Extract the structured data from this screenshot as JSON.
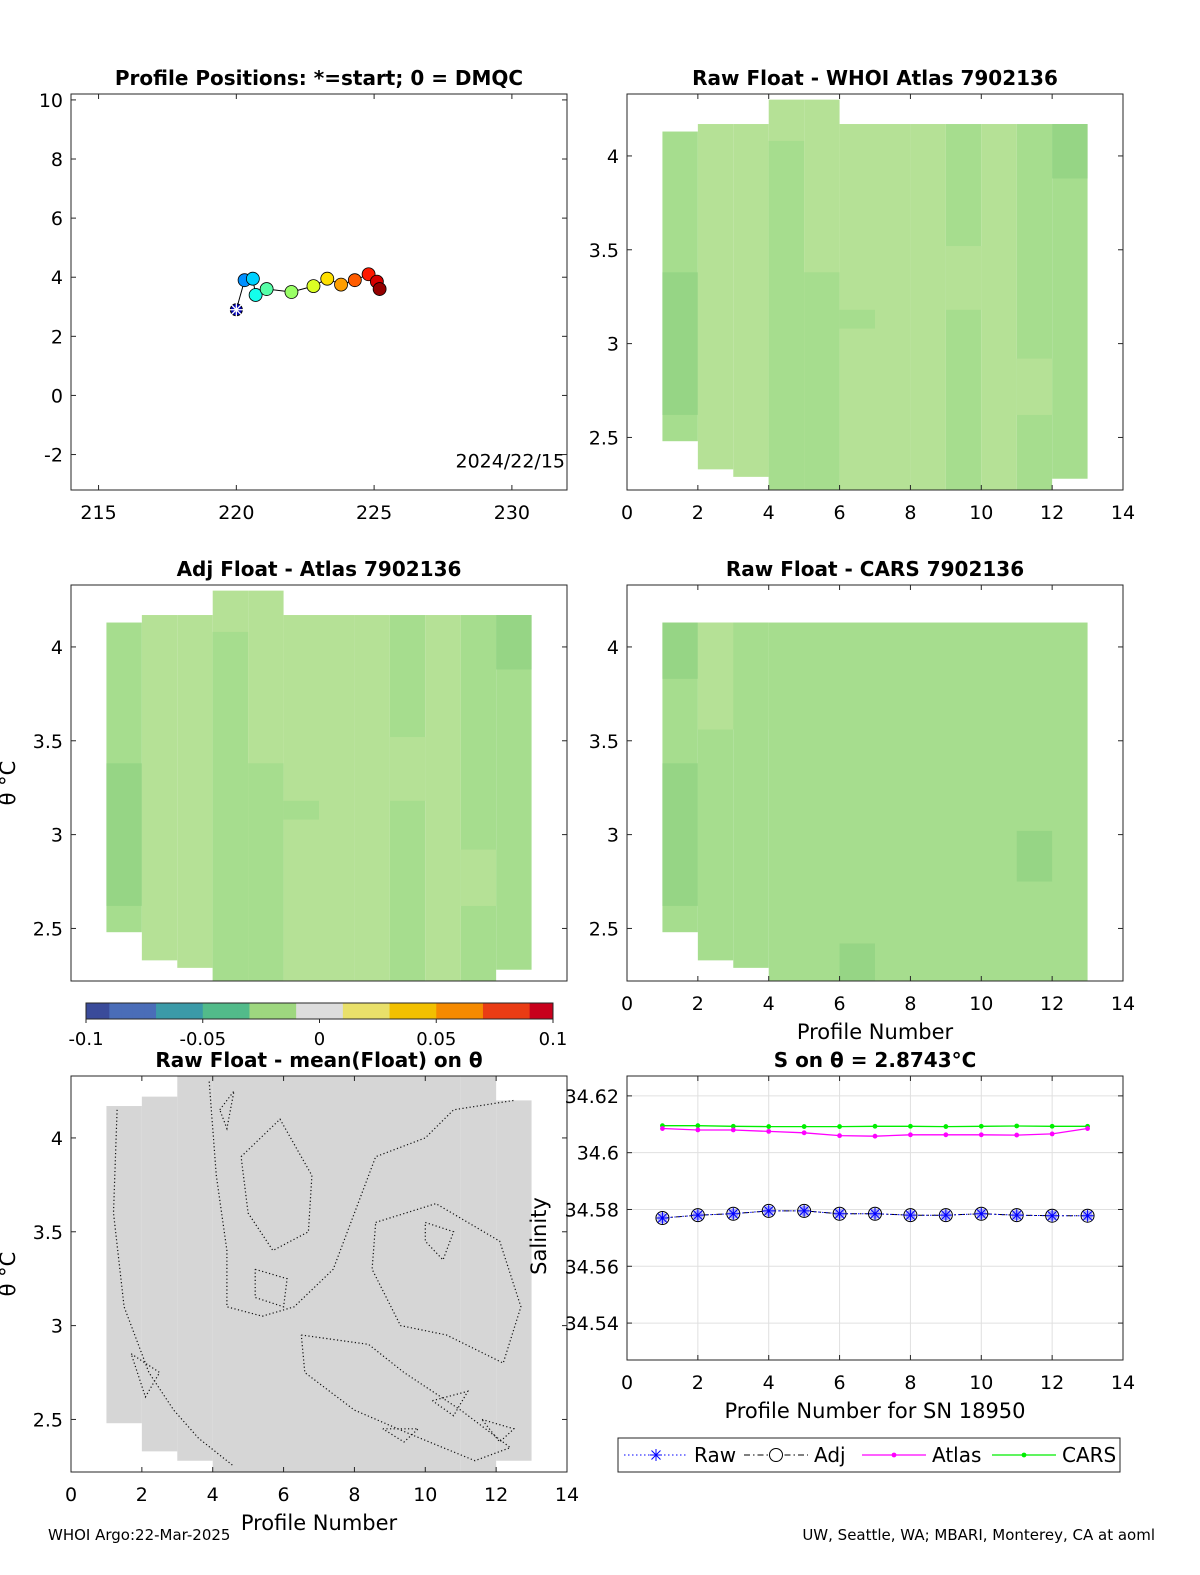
{
  "footer": {
    "left": "WHOI Argo:22-Mar-2025",
    "right": "UW, Seattle, WA; MBARI, Monterey, CA at aoml"
  },
  "colors": {
    "raw": "#0000ff",
    "adj": "#000000",
    "atlas": "#ff00ff",
    "cars": "#00ee00",
    "pane_fill_light": "#b5e196",
    "pane_fill_mid": "#a6dd8e",
    "pane_fill_dark": "#96d585",
    "gray_fill": "#d6d6d6"
  },
  "chart_data": [
    {
      "id": "positions",
      "type": "scatter",
      "title": "Profile Positions: *=start; 0 = DMQC",
      "xlim": [
        214,
        232
      ],
      "ylim": [
        -3.2,
        10.2
      ],
      "xticks": [
        "215",
        "220",
        "225",
        "230"
      ],
      "yticks": [
        "-2",
        "0",
        "2",
        "4",
        "6",
        "8",
        "10"
      ],
      "annotation": "2024/22/15",
      "start_marker": "*",
      "points": [
        {
          "x": 220.0,
          "y": 2.9
        },
        {
          "x": 220.3,
          "y": 3.9
        },
        {
          "x": 220.6,
          "y": 3.95
        },
        {
          "x": 220.7,
          "y": 3.4
        },
        {
          "x": 221.1,
          "y": 3.6
        },
        {
          "x": 222.0,
          "y": 3.5
        },
        {
          "x": 222.8,
          "y": 3.7
        },
        {
          "x": 223.3,
          "y": 3.95
        },
        {
          "x": 223.8,
          "y": 3.75
        },
        {
          "x": 224.3,
          "y": 3.9
        },
        {
          "x": 224.8,
          "y": 4.1
        },
        {
          "x": 225.1,
          "y": 3.85
        },
        {
          "x": 225.2,
          "y": 3.6
        }
      ]
    },
    {
      "id": "raw_whoi",
      "type": "heatmap",
      "title": "Raw Float - WHOI Atlas  7902136",
      "xlim": [
        0,
        14
      ],
      "ylim": [
        2.22,
        4.33
      ],
      "xticks": [
        "0",
        "2",
        "4",
        "6",
        "8",
        "10",
        "12",
        "14"
      ],
      "yticks": [
        "2.5",
        "3",
        "3.5",
        "4"
      ],
      "cells": [
        [
          1,
          2.48,
          2,
          4.13,
          "mid"
        ],
        [
          1,
          2.62,
          2,
          3.38,
          "dark"
        ],
        [
          2,
          2.33,
          3,
          4.17,
          "light"
        ],
        [
          3,
          2.29,
          4,
          4.17,
          "light"
        ],
        [
          4,
          2.22,
          5,
          4.3,
          "light"
        ],
        [
          4,
          2.22,
          5,
          4.08,
          "mid"
        ],
        [
          5,
          2.22,
          6,
          4.3,
          "light"
        ],
        [
          5,
          2.22,
          6,
          3.38,
          "mid"
        ],
        [
          6,
          2.22,
          7,
          4.17,
          "light"
        ],
        [
          6,
          3.08,
          7,
          3.18,
          "mid"
        ],
        [
          7,
          2.22,
          8,
          4.17,
          "light"
        ],
        [
          8,
          2.22,
          9,
          4.17,
          "light"
        ],
        [
          9,
          2.22,
          10,
          4.17,
          "mid"
        ],
        [
          9,
          3.18,
          10,
          3.52,
          "light"
        ],
        [
          10,
          2.22,
          11,
          4.17,
          "light"
        ],
        [
          11,
          2.22,
          12,
          4.17,
          "mid"
        ],
        [
          11,
          2.62,
          12,
          2.92,
          "light"
        ],
        [
          12,
          2.28,
          13,
          4.17,
          "mid"
        ],
        [
          12,
          3.88,
          13,
          4.17,
          "dark"
        ]
      ]
    },
    {
      "id": "adj_atlas",
      "type": "heatmap",
      "title": "Adj Float - Atlas  7902136",
      "ylabel": "θ °C",
      "xlim": [
        -1,
        13
      ],
      "ylim": [
        2.22,
        4.33
      ],
      "yticks": [
        "2.5",
        "3",
        "3.5",
        "4"
      ],
      "cells": [
        [
          0,
          2.48,
          1,
          4.13,
          "mid"
        ],
        [
          0,
          2.62,
          1,
          3.38,
          "dark"
        ],
        [
          1,
          2.33,
          2,
          4.17,
          "light"
        ],
        [
          2,
          2.29,
          3,
          4.17,
          "light"
        ],
        [
          3,
          2.22,
          4,
          4.3,
          "light"
        ],
        [
          3,
          2.22,
          4,
          4.08,
          "mid"
        ],
        [
          4,
          2.22,
          5,
          4.3,
          "light"
        ],
        [
          4,
          2.22,
          5,
          3.38,
          "mid"
        ],
        [
          5,
          2.22,
          6,
          4.17,
          "light"
        ],
        [
          5,
          3.08,
          6,
          3.18,
          "mid"
        ],
        [
          6,
          2.22,
          7,
          4.17,
          "light"
        ],
        [
          7,
          2.22,
          8,
          4.17,
          "light"
        ],
        [
          8,
          2.22,
          9,
          4.17,
          "mid"
        ],
        [
          8,
          3.18,
          9,
          3.52,
          "light"
        ],
        [
          9,
          2.22,
          10,
          4.17,
          "light"
        ],
        [
          10,
          2.22,
          11,
          4.17,
          "mid"
        ],
        [
          10,
          2.62,
          11,
          2.92,
          "light"
        ],
        [
          11,
          2.28,
          12,
          4.17,
          "mid"
        ],
        [
          11,
          3.88,
          12,
          4.17,
          "dark"
        ]
      ]
    },
    {
      "id": "raw_cars",
      "type": "heatmap",
      "title": "Raw Float - CARS  7902136",
      "xlabel": "Profile Number",
      "xlim": [
        0,
        14
      ],
      "ylim": [
        2.22,
        4.33
      ],
      "xticks": [
        "0",
        "2",
        "4",
        "6",
        "8",
        "10",
        "12",
        "14"
      ],
      "yticks": [
        "2.5",
        "3",
        "3.5",
        "4"
      ],
      "cells": [
        [
          1,
          2.48,
          2,
          4.13,
          "mid"
        ],
        [
          1,
          2.62,
          2,
          3.38,
          "dark"
        ],
        [
          1,
          3.83,
          2,
          4.13,
          "dark"
        ],
        [
          2,
          2.33,
          3,
          4.13,
          "mid"
        ],
        [
          2,
          3.56,
          4,
          4.13,
          "light"
        ],
        [
          3,
          2.29,
          4,
          4.13,
          "mid"
        ],
        [
          4,
          2.22,
          13,
          4.13,
          "mid"
        ],
        [
          6,
          2.22,
          7,
          2.42,
          "dark"
        ],
        [
          11,
          2.75,
          12,
          3.02,
          "dark"
        ]
      ]
    },
    {
      "id": "colorbar",
      "type": "heatmap",
      "ticks": [
        "-0.1",
        "-0.05",
        "0",
        "0.05",
        "0.1"
      ],
      "range": [
        -0.1,
        0.1
      ]
    },
    {
      "id": "raw_mean",
      "type": "heatmap",
      "title": "Raw Float - mean(Float) on θ",
      "xlabel": "Profile Number",
      "ylabel": "θ °C",
      "xlim": [
        0,
        14
      ],
      "ylim": [
        2.22,
        4.33
      ],
      "xticks": [
        "0",
        "2",
        "4",
        "6",
        "8",
        "10",
        "12",
        "14"
      ],
      "yticks": [
        "2.5",
        "3",
        "3.5",
        "4"
      ]
    },
    {
      "id": "salinity",
      "type": "line",
      "title": "S on θ = 2.8743°C",
      "xlabel": "Profile Number for SN 18950",
      "ylabel": "Salinity",
      "xlim": [
        0,
        14
      ],
      "ylim": [
        34.527,
        34.627
      ],
      "xticks": [
        "0",
        "2",
        "4",
        "6",
        "8",
        "10",
        "12",
        "14"
      ],
      "yticks": [
        "34.54",
        "34.56",
        "34.58",
        "34.6",
        "34.62"
      ],
      "x": [
        1,
        2,
        3,
        4,
        5,
        6,
        7,
        8,
        9,
        10,
        11,
        12,
        13
      ],
      "series": [
        {
          "name": "Raw",
          "values": [
            34.577,
            34.578,
            34.5785,
            34.5795,
            34.5795,
            34.5785,
            34.5785,
            34.578,
            34.578,
            34.5785,
            34.578,
            34.5778,
            34.5778
          ]
        },
        {
          "name": "Adj",
          "values": [
            34.577,
            34.578,
            34.5785,
            34.5795,
            34.5795,
            34.5785,
            34.5785,
            34.578,
            34.578,
            34.5785,
            34.578,
            34.5778,
            34.5778
          ]
        },
        {
          "name": "Atlas",
          "values": [
            34.6085,
            34.608,
            34.608,
            34.6075,
            34.607,
            34.606,
            34.6058,
            34.6063,
            34.6063,
            34.6063,
            34.6062,
            34.6066,
            34.6085
          ]
        },
        {
          "name": "CARS",
          "values": [
            34.6095,
            34.6095,
            34.6093,
            34.6092,
            34.6092,
            34.6092,
            34.6093,
            34.6093,
            34.6092,
            34.6093,
            34.6094,
            34.6093,
            34.6093
          ]
        }
      ]
    }
  ]
}
